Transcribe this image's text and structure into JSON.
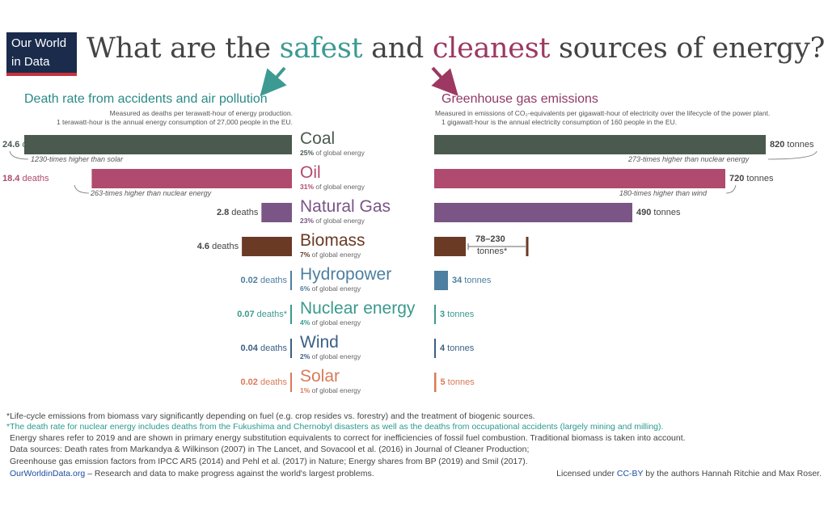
{
  "logo": {
    "line1": "Our World",
    "line2": "in Data"
  },
  "title": {
    "part1": "What are the ",
    "safe": "safest",
    "part2": " and ",
    "clean": "cleanest",
    "part3": " sources of energy?"
  },
  "left_panel": {
    "heading": "Death rate from accidents and air pollution",
    "sub1": "Measured as deaths per terawatt-hour of energy production.",
    "sub2": "1 terawatt-hour is the annual energy consumption of 27,000 people in the EU."
  },
  "right_panel": {
    "heading": "Greenhouse gas emissions",
    "sub1": "Measured in emissions of CO₂-equivalents per gigawatt-hour of electricity over the lifecycle of the power plant.",
    "sub2": "1 gigawatt-hour is the annual electricity consumption of 160 people in the EU."
  },
  "chart_data": {
    "type": "bar",
    "categories": [
      "Coal",
      "Oil",
      "Natural Gas",
      "Biomass",
      "Hydropower",
      "Nuclear energy",
      "Wind",
      "Solar"
    ],
    "shares": [
      "25%",
      "31%",
      "23%",
      "7%",
      "6%",
      "4%",
      "2%",
      "1%"
    ],
    "share_suffix": "of global energy",
    "colors": [
      "#4a5a4e",
      "#b04a6e",
      "#7a5585",
      "#6b3a24",
      "#4d7fa0",
      "#3a9a8e",
      "#3a5f86",
      "#d87a58"
    ],
    "series": [
      {
        "name": "Death rate from accidents and air pollution",
        "unit": "deaths",
        "values": [
          24.6,
          18.4,
          2.8,
          4.6,
          0.02,
          0.07,
          0.04,
          0.02
        ],
        "labels": [
          "24.6",
          "18.4",
          "2.8",
          "4.6",
          "0.02",
          "0.07",
          "0.04",
          "0.02"
        ],
        "label_suffix": [
          "deaths",
          "deaths",
          "deaths",
          "deaths",
          "deaths",
          "deaths*",
          "deaths",
          "deaths"
        ]
      },
      {
        "name": "Greenhouse gas emissions",
        "unit": "tonnes",
        "values": [
          820,
          720,
          490,
          154,
          34,
          3,
          4,
          5
        ],
        "range": {
          "Biomass": [
            78,
            230
          ]
        },
        "labels": [
          "820",
          "720",
          "490",
          "78–230",
          "34",
          "3",
          "4",
          "5"
        ]
      }
    ],
    "annotations": {
      "coal_death": "1230-times higher than solar",
      "oil_death": "263-times higher than nuclear energy",
      "coal_ghg": "273-times higher than nuclear energy",
      "oil_ghg": "180-times higher than wind",
      "biomass_unit": "tonnes*"
    }
  },
  "footnotes": {
    "f1": "*Life-cycle emissions from biomass vary significantly depending on fuel (e.g. crop resides vs. forestry) and the treatment of biogenic sources.",
    "f2": "*The death rate for nuclear energy includes deaths from the Fukushima and Chernobyl disasters as well as the deaths from occupational accidents (largely mining and milling).",
    "f3": "Energy shares refer to 2019 and are shown in primary energy substitution equivalents to correct for inefficiencies of fossil fuel combustion. Traditional biomass is taken into account.",
    "f4": "Data sources: Death rates from Markandya & Wilkinson (2007) in The Lancet, and Sovacool et al. (2016) in Journal of Cleaner Production;",
    "f5": "Greenhouse gas emission factors from IPCC AR5 (2014) and Pehl et al. (2017) in Nature; Energy shares from BP (2019) and Smil (2017).",
    "site": "OurWorldinData.org",
    "site_text": " – Research and data to make progress against the world's largest problems.",
    "license_pre": "Licensed under ",
    "license_link": "CC-BY",
    "license_post": " by the authors Hannah Ritchie and Max Roser."
  }
}
